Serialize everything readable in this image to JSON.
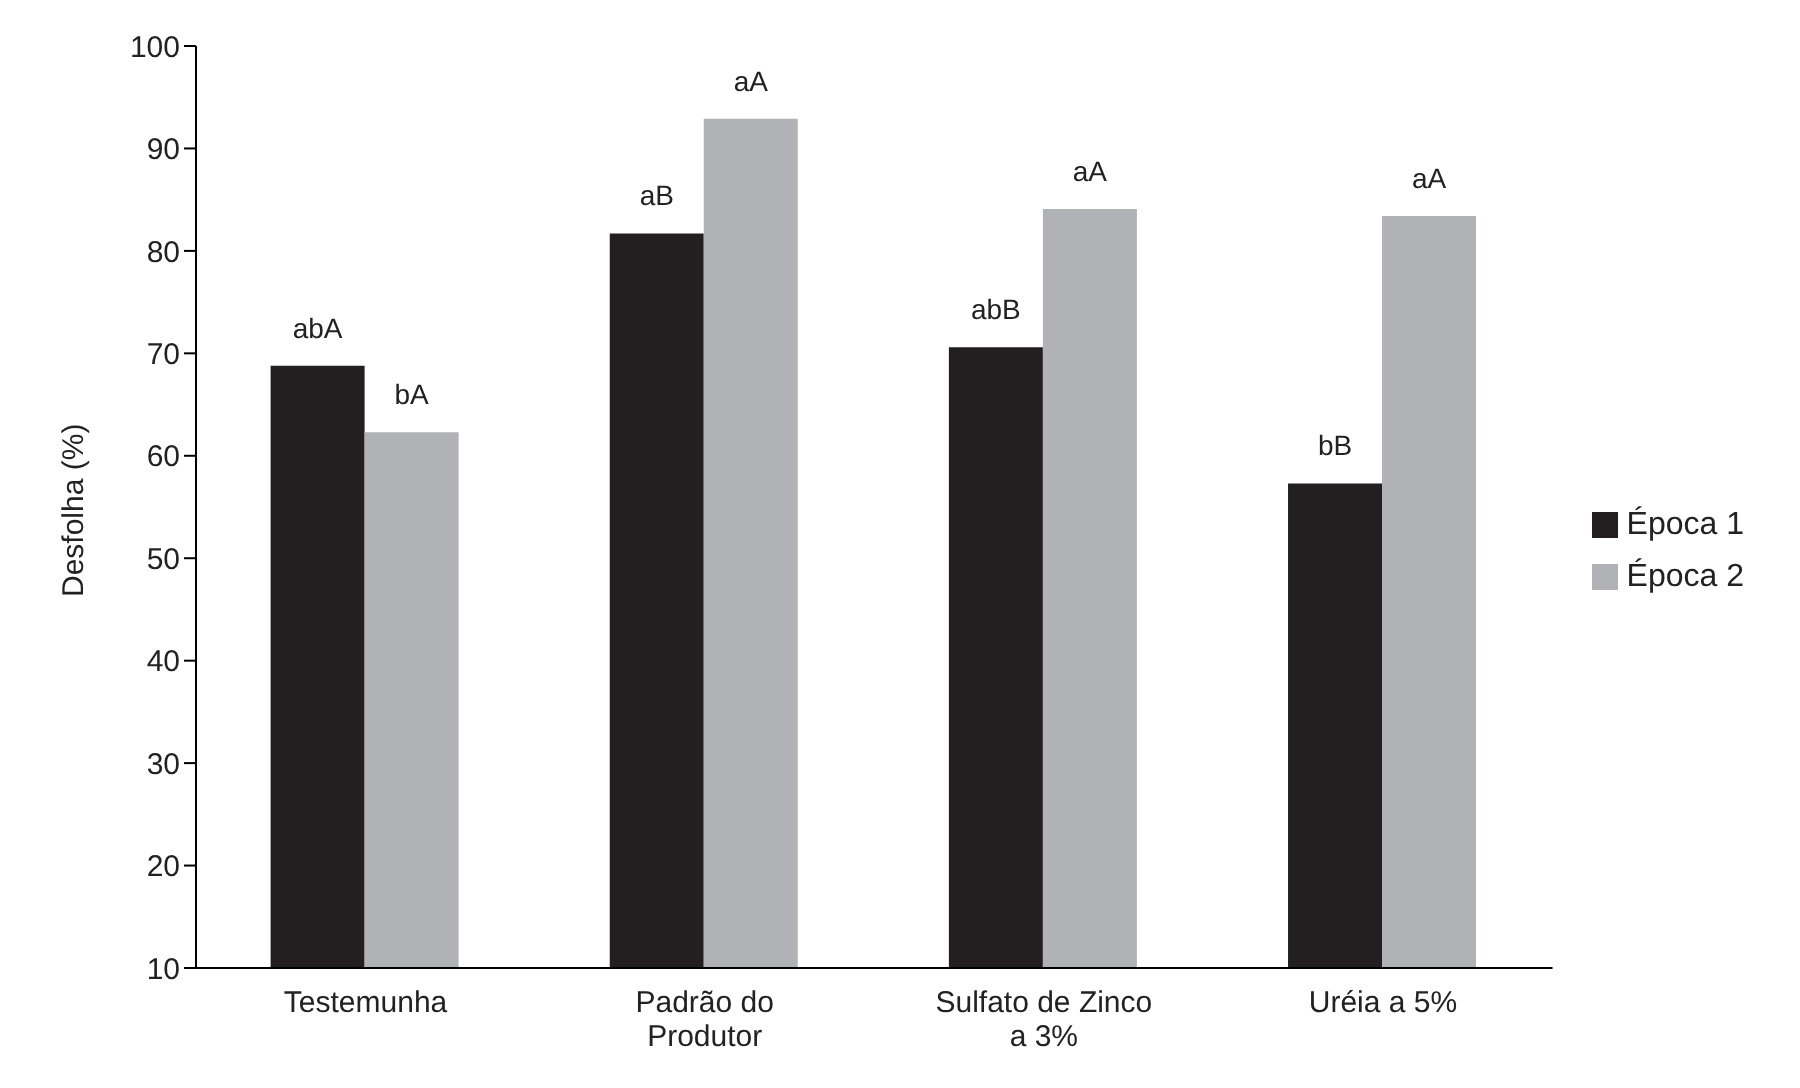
{
  "chart_data": {
    "type": "bar",
    "ylabel": "Desfolha (%)",
    "categories": [
      "Testemunha",
      "Padrão do Produtor",
      "Sulfato de Zinco a 3%",
      "Uréia a 5%"
    ],
    "series": [
      {
        "name": "Época 1",
        "color": "#231f20",
        "values": [
          68.8,
          81.7,
          70.6,
          57.3
        ],
        "value_labels": [
          "abA",
          "aB",
          "abB",
          "bB"
        ]
      },
      {
        "name": "Época 2",
        "color": "#b1b2b5",
        "values": [
          62.3,
          92.9,
          84.1,
          83.4
        ],
        "value_labels": [
          "bA",
          "aA",
          "aA",
          "aA"
        ]
      }
    ],
    "ylim": [
      10,
      100
    ],
    "yticks": [
      10,
      20,
      30,
      40,
      50,
      60,
      70,
      80,
      90,
      100
    ],
    "legend": "right"
  }
}
